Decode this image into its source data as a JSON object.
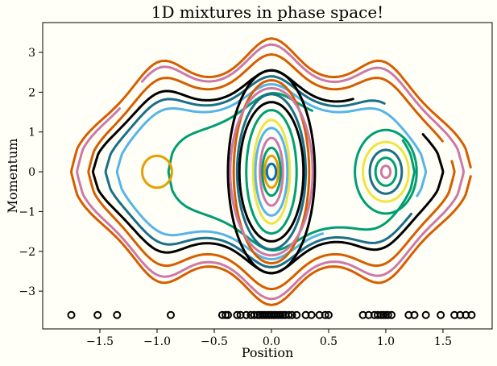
{
  "chart_data": {
    "type": "scatter",
    "title": "1D mixtures in phase space!",
    "xlabel": "Position",
    "ylabel": "Momentum",
    "xlim": [
      -2.0,
      1.93
    ],
    "ylim": [
      -3.95,
      3.75
    ],
    "xticks": [
      -1.5,
      -1.0,
      -0.5,
      0.0,
      0.5,
      1.0,
      1.5
    ],
    "xtick_labels": [
      "−1.5",
      "−1.0",
      "−0.5",
      "0.0",
      "0.5",
      "1.0",
      "1.5"
    ],
    "yticks": [
      -3,
      -2,
      -1,
      0,
      1,
      2,
      3
    ],
    "ytick_labels": [
      "−3",
      "−2",
      "−1",
      "0",
      "1",
      "2",
      "3"
    ],
    "grid": false,
    "mixture_centers": [
      -1.0,
      0.0,
      1.0
    ],
    "colors": {
      "background": "#fffff7",
      "palette": [
        "#000000",
        "#e69f00",
        "#56b4e9",
        "#009e73",
        "#f0e442",
        "#0072b2",
        "#d55e00",
        "#cc79a7",
        "#1b6f8a"
      ]
    },
    "series": [
      {
        "kind": "outer_orbit",
        "color": "#d55e00",
        "y_peak": 3.35,
        "x_left": -1.75,
        "x_right": 1.75,
        "gap_from": 175,
        "gap_to": 185
      },
      {
        "kind": "outer_orbit",
        "color": "#cc79a7",
        "y_peak": 3.2,
        "x_left": -1.7,
        "x_right": 1.68,
        "gap_from": 40,
        "gap_to": 48
      },
      {
        "kind": "outer_orbit",
        "color": "#d55e00",
        "y_peak": 2.95,
        "x_left": -1.6,
        "x_right": 1.6,
        "gap_from": 160,
        "gap_to": 170
      },
      {
        "kind": "outer_orbit",
        "color": "#000000",
        "y_peak": 2.55,
        "x_left": -1.56,
        "x_right": 1.5,
        "gap_from": 120,
        "gap_to": 152
      },
      {
        "kind": "outer_orbit",
        "color": "#1b6f8a",
        "y_peak": 2.4,
        "x_left": -1.45,
        "x_right": 1.42,
        "gap_from": 135,
        "gap_to": 210
      },
      {
        "kind": "outer_orbit",
        "color": "#56b4e9",
        "y_peak": 2.2,
        "x_left": -1.35,
        "x_right": 1.35,
        "gap_from": 200,
        "gap_to": 250
      },
      {
        "kind": "outer_orbit",
        "color": "#009e73",
        "y_peak": 2.0,
        "x_left": -0.9,
        "x_right": 1.25,
        "gap_from": 100,
        "gap_to": 155
      },
      {
        "kind": "inner_orbit",
        "color": "#e69f00",
        "cx": -1.0,
        "rx": 0.13,
        "ry": 0.4
      },
      {
        "kind": "inner_orbit",
        "color": "#000000",
        "cx": 0.0,
        "rx": 0.38,
        "ry": 2.55
      },
      {
        "kind": "inner_orbit",
        "color": "#d55e00",
        "cx": 0.0,
        "rx": 0.33,
        "ry": 2.3
      },
      {
        "kind": "inner_orbit",
        "color": "#cc79a7",
        "cx": 0.0,
        "rx": 0.36,
        "ry": 2.1
      },
      {
        "kind": "inner_orbit",
        "color": "#1b6f8a",
        "cx": 0.0,
        "rx": 0.3,
        "ry": 1.95
      },
      {
        "kind": "inner_orbit",
        "color": "#000000",
        "cx": 0.0,
        "rx": 0.28,
        "ry": 1.75
      },
      {
        "kind": "inner_orbit",
        "color": "#009e73",
        "cx": 0.0,
        "rx": 0.22,
        "ry": 1.55
      },
      {
        "kind": "inner_orbit",
        "color": "#f0e442",
        "cx": 0.0,
        "rx": 0.16,
        "ry": 1.3
      },
      {
        "kind": "inner_orbit",
        "color": "#56b4e9",
        "cx": 0.0,
        "rx": 0.14,
        "ry": 1.1
      },
      {
        "kind": "inner_orbit",
        "color": "#cc79a7",
        "cx": 0.0,
        "rx": 0.1,
        "ry": 0.85
      },
      {
        "kind": "inner_orbit",
        "color": "#009e73",
        "cx": 0.0,
        "rx": 0.08,
        "ry": 0.6
      },
      {
        "kind": "inner_orbit",
        "color": "#e69f00",
        "cx": 0.0,
        "rx": 0.06,
        "ry": 0.4
      },
      {
        "kind": "inner_orbit",
        "color": "#0072b2",
        "cx": 0.0,
        "rx": 0.04,
        "ry": 0.2
      },
      {
        "kind": "inner_orbit",
        "color": "#009e73",
        "cx": 1.0,
        "rx": 0.27,
        "ry": 1.05
      },
      {
        "kind": "inner_orbit",
        "color": "#f0e442",
        "cx": 1.0,
        "rx": 0.2,
        "ry": 0.75
      },
      {
        "kind": "inner_orbit",
        "color": "#1b6f8a",
        "cx": 1.0,
        "rx": 0.14,
        "ry": 0.55
      },
      {
        "kind": "inner_orbit",
        "color": "#009e73",
        "cx": 1.0,
        "rx": 0.09,
        "ry": 0.35
      },
      {
        "kind": "inner_orbit",
        "color": "#cc79a7",
        "cx": 1.0,
        "rx": 0.04,
        "ry": 0.15
      }
    ],
    "samples": {
      "y": -3.6,
      "x": [
        -1.75,
        -1.52,
        -1.35,
        -0.88,
        -0.43,
        -0.4,
        -0.38,
        -0.3,
        -0.27,
        -0.22,
        -0.18,
        -0.15,
        -0.12,
        -0.1,
        -0.08,
        -0.06,
        -0.04,
        -0.02,
        0.0,
        0.02,
        0.04,
        0.06,
        0.08,
        0.1,
        0.12,
        0.15,
        0.18,
        0.22,
        0.3,
        0.35,
        0.42,
        0.47,
        0.5,
        0.8,
        0.85,
        0.9,
        0.93,
        0.96,
        0.98,
        1.0,
        1.02,
        1.05,
        1.2,
        1.25,
        1.35,
        1.48,
        1.6,
        1.65,
        1.7,
        1.75
      ]
    }
  }
}
